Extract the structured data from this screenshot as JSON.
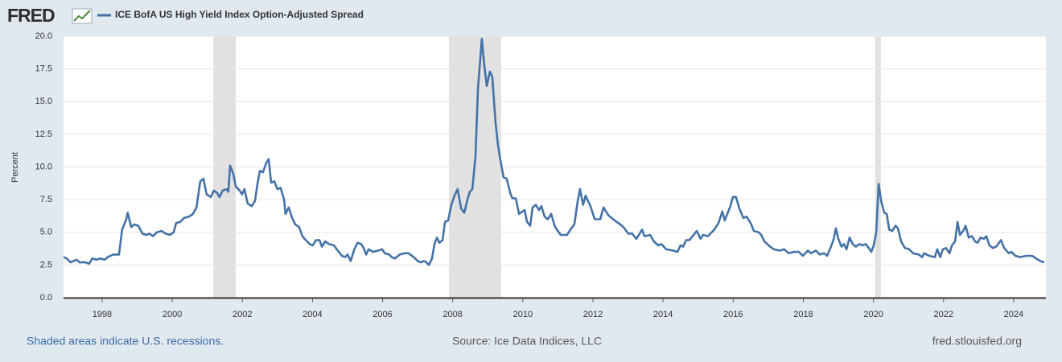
{
  "header": {
    "logo": "FRED"
  },
  "chart_data": {
    "type": "line",
    "y_label": "Percent",
    "xlim": [
      1996.9,
      2024.92
    ],
    "ylim": [
      0,
      20
    ],
    "xticks": [
      1998,
      2000,
      2002,
      2004,
      2006,
      2008,
      2010,
      2012,
      2014,
      2016,
      2018,
      2020,
      2022,
      2024
    ],
    "yticks": [
      {
        "value": 0,
        "label": "0.0"
      },
      2.5,
      {
        "value": 5,
        "label": "5.0"
      },
      7.5,
      {
        "value": 10,
        "label": "10.0"
      },
      12.5,
      {
        "value": 15,
        "label": "15.0"
      },
      17.5,
      {
        "value": 20,
        "label": "20.0"
      }
    ],
    "grid": true,
    "recessions": [
      [
        2001.17,
        2001.81
      ],
      [
        2007.89,
        2009.38
      ],
      [
        2020.05,
        2020.21
      ]
    ],
    "series": [
      {
        "name": "ICE BofA US High Yield Index Option-Adjusted Spread",
        "color": "#4572a7",
        "x": [
          1996.9,
          1996.99,
          1997.1,
          1997.27,
          1997.36,
          1997.52,
          1997.63,
          1997.72,
          1997.84,
          1997.95,
          1998.07,
          1998.16,
          1998.32,
          1998.48,
          1998.57,
          1998.69,
          1998.73,
          1998.83,
          1998.92,
          1999.03,
          1999.15,
          1999.26,
          1999.35,
          1999.45,
          1999.56,
          1999.7,
          1999.81,
          1999.93,
          2000.04,
          2000.11,
          2000.23,
          2000.34,
          2000.48,
          2000.59,
          2000.69,
          2000.8,
          2000.89,
          2000.98,
          2001.1,
          2001.19,
          2001.28,
          2001.35,
          2001.44,
          2001.56,
          2001.6,
          2001.65,
          2001.74,
          2001.81,
          2001.92,
          2001.99,
          2002.06,
          2002.15,
          2002.27,
          2002.36,
          2002.43,
          2002.5,
          2002.59,
          2002.68,
          2002.75,
          2002.82,
          2002.91,
          2003.0,
          2003.09,
          2003.19,
          2003.23,
          2003.32,
          2003.42,
          2003.51,
          2003.62,
          2003.71,
          2003.81,
          2003.92,
          2004.01,
          2004.1,
          2004.2,
          2004.27,
          2004.36,
          2004.47,
          2004.61,
          2004.72,
          2004.84,
          2004.93,
          2005.0,
          2005.09,
          2005.18,
          2005.28,
          2005.39,
          2005.46,
          2005.53,
          2005.6,
          2005.73,
          2005.87,
          2005.99,
          2006.06,
          2006.19,
          2006.26,
          2006.35,
          2006.49,
          2006.63,
          2006.74,
          2006.84,
          2006.93,
          2007.0,
          2007.09,
          2007.18,
          2007.25,
          2007.32,
          2007.41,
          2007.48,
          2007.55,
          2007.62,
          2007.71,
          2007.78,
          2007.87,
          2007.96,
          2008.05,
          2008.14,
          2008.24,
          2008.33,
          2008.42,
          2008.49,
          2008.56,
          2008.65,
          2008.72,
          2008.83,
          2008.9,
          2008.97,
          2009.06,
          2009.13,
          2009.22,
          2009.29,
          2009.36,
          2009.45,
          2009.54,
          2009.64,
          2009.7,
          2009.8,
          2009.89,
          2010.05,
          2010.12,
          2010.21,
          2010.28,
          2010.37,
          2010.46,
          2010.53,
          2010.62,
          2010.71,
          2010.81,
          2010.92,
          2011.08,
          2011.26,
          2011.38,
          2011.47,
          2011.56,
          2011.63,
          2011.72,
          2011.79,
          2011.93,
          2012.05,
          2012.21,
          2012.3,
          2012.44,
          2012.62,
          2012.78,
          2012.87,
          2013.01,
          2013.12,
          2013.24,
          2013.4,
          2013.47,
          2013.63,
          2013.74,
          2013.86,
          2013.95,
          2014.09,
          2014.29,
          2014.41,
          2014.5,
          2014.57,
          2014.66,
          2014.75,
          2014.87,
          2014.96,
          2015.07,
          2015.14,
          2015.28,
          2015.46,
          2015.58,
          2015.69,
          2015.76,
          2015.83,
          2015.92,
          2015.99,
          2016.08,
          2016.18,
          2016.29,
          2016.38,
          2016.5,
          2016.59,
          2016.73,
          2016.8,
          2016.89,
          2017.05,
          2017.16,
          2017.32,
          2017.46,
          2017.58,
          2017.74,
          2017.87,
          2017.99,
          2018.13,
          2018.22,
          2018.36,
          2018.47,
          2018.59,
          2018.68,
          2018.79,
          2018.86,
          2018.93,
          2019.0,
          2019.09,
          2019.16,
          2019.23,
          2019.32,
          2019.41,
          2019.5,
          2019.6,
          2019.69,
          2019.78,
          2019.87,
          2019.94,
          2020.01,
          2020.08,
          2020.15,
          2020.22,
          2020.31,
          2020.38,
          2020.45,
          2020.54,
          2020.63,
          2020.7,
          2020.79,
          2020.9,
          2021.02,
          2021.13,
          2021.29,
          2021.39,
          2021.45,
          2021.59,
          2021.75,
          2021.82,
          2021.91,
          2021.98,
          2022.07,
          2022.17,
          2022.24,
          2022.33,
          2022.4,
          2022.47,
          2022.56,
          2022.63,
          2022.72,
          2022.81,
          2022.9,
          2022.97,
          2023.06,
          2023.15,
          2023.22,
          2023.31,
          2023.41,
          2023.5,
          2023.64,
          2023.73,
          2023.86,
          2023.93,
          2024.05,
          2024.19,
          2024.37,
          2024.53,
          2024.64,
          2024.76,
          2024.87
        ],
        "values": [
          3.1,
          3.0,
          2.7,
          2.9,
          2.7,
          2.7,
          2.6,
          3.0,
          2.9,
          3.0,
          2.9,
          3.1,
          3.3,
          3.3,
          5.2,
          6.0,
          6.5,
          5.4,
          5.6,
          5.5,
          4.9,
          4.8,
          4.9,
          4.7,
          5.0,
          5.1,
          4.9,
          4.8,
          5.0,
          5.7,
          5.8,
          6.1,
          6.2,
          6.4,
          6.9,
          8.9,
          9.1,
          7.9,
          7.7,
          8.2,
          8.0,
          7.7,
          8.2,
          8.3,
          8.1,
          10.1,
          9.5,
          8.5,
          8.2,
          7.9,
          8.3,
          7.2,
          7.0,
          7.4,
          8.7,
          9.7,
          9.6,
          10.3,
          10.6,
          8.8,
          8.9,
          8.3,
          8.4,
          7.5,
          6.4,
          6.9,
          6.1,
          5.6,
          5.4,
          4.7,
          4.4,
          4.1,
          4.0,
          4.4,
          4.4,
          3.9,
          4.3,
          4.1,
          4.0,
          3.6,
          3.2,
          3.1,
          3.3,
          2.8,
          3.6,
          4.2,
          4.1,
          3.8,
          3.3,
          3.7,
          3.5,
          3.6,
          3.7,
          3.4,
          3.3,
          3.1,
          3.0,
          3.3,
          3.4,
          3.4,
          3.2,
          3.0,
          2.8,
          2.7,
          2.8,
          2.7,
          2.5,
          3.0,
          4.1,
          4.6,
          4.2,
          4.4,
          5.8,
          5.9,
          7.1,
          7.8,
          8.3,
          6.8,
          6.5,
          7.5,
          8.1,
          8.3,
          10.8,
          16.0,
          19.8,
          17.8,
          16.2,
          17.3,
          16.9,
          13.4,
          11.7,
          10.5,
          9.2,
          9.1,
          8.0,
          7.6,
          7.6,
          6.4,
          6.7,
          5.8,
          5.5,
          6.9,
          7.1,
          6.7,
          7.0,
          6.2,
          6.0,
          6.4,
          5.4,
          4.8,
          4.8,
          5.3,
          5.6,
          7.3,
          8.3,
          7.1,
          7.8,
          7.0,
          6.0,
          6.0,
          6.9,
          6.3,
          5.9,
          5.6,
          5.4,
          4.9,
          4.9,
          4.5,
          5.2,
          4.7,
          4.8,
          4.3,
          4.0,
          4.1,
          3.7,
          3.6,
          3.5,
          4.0,
          3.9,
          4.4,
          4.4,
          4.8,
          5.1,
          4.5,
          4.8,
          4.7,
          5.2,
          5.7,
          6.6,
          5.9,
          6.4,
          7.0,
          7.7,
          7.7,
          6.8,
          6.1,
          6.2,
          5.7,
          5.1,
          5.0,
          4.8,
          4.3,
          3.9,
          3.7,
          3.6,
          3.7,
          3.4,
          3.5,
          3.5,
          3.2,
          3.6,
          3.4,
          3.6,
          3.3,
          3.4,
          3.2,
          3.9,
          4.4,
          5.3,
          4.5,
          3.9,
          4.1,
          3.7,
          4.6,
          4.1,
          3.9,
          4.1,
          4.0,
          4.1,
          3.8,
          3.5,
          4.0,
          5.0,
          8.7,
          7.4,
          6.5,
          6.4,
          5.2,
          5.1,
          5.5,
          5.3,
          4.3,
          3.8,
          3.7,
          3.4,
          3.3,
          3.1,
          3.4,
          3.2,
          3.1,
          3.7,
          3.1,
          3.7,
          3.8,
          3.4,
          4.0,
          4.3,
          5.8,
          4.8,
          5.1,
          5.5,
          4.6,
          4.7,
          4.3,
          4.2,
          4.6,
          4.5,
          4.7,
          4.0,
          3.8,
          3.9,
          4.4,
          3.8,
          3.4,
          3.5,
          3.2,
          3.1,
          3.2,
          3.2,
          3.0,
          2.8,
          2.7
        ]
      }
    ]
  },
  "footer": {
    "note": "Shaded areas indicate U.S. recessions.",
    "source": "Source: Ice Data Indices, LLC",
    "url": "fred.stlouisfed.org"
  }
}
